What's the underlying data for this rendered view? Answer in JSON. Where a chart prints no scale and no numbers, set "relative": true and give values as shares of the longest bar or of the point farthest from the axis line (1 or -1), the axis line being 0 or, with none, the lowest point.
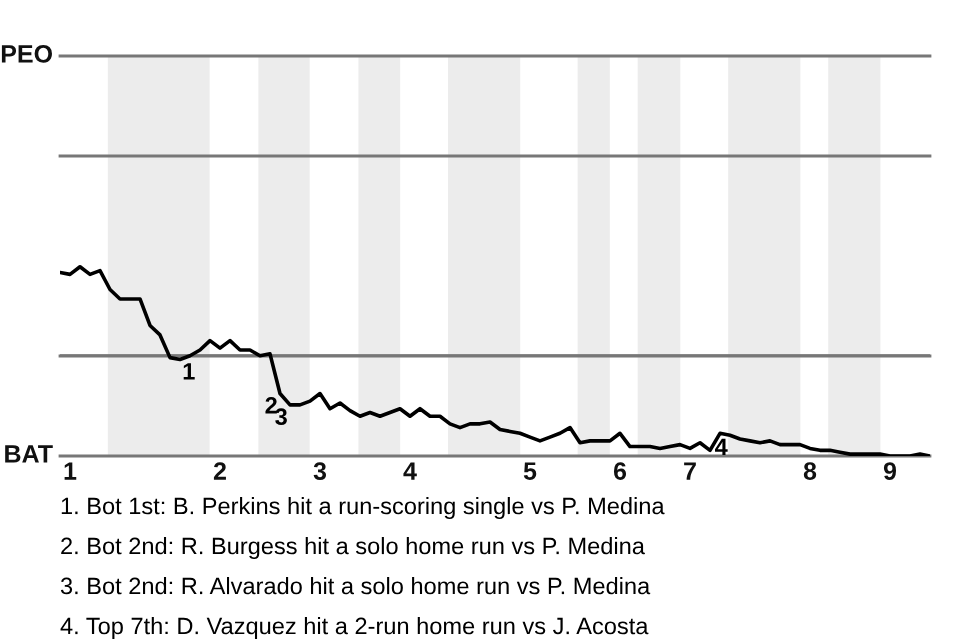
{
  "chart_data": {
    "type": "line",
    "relative": true,
    "categories": [
      null,
      "1",
      null,
      null,
      null,
      null,
      null,
      null,
      null,
      null,
      null,
      null,
      null,
      null,
      null,
      null,
      "2",
      null,
      null,
      null,
      null,
      null,
      null,
      null,
      null,
      null,
      "3",
      null,
      null,
      null,
      null,
      null,
      null,
      null,
      null,
      "4",
      null,
      null,
      null,
      null,
      null,
      null,
      null,
      null,
      null,
      null,
      null,
      "5",
      null,
      null,
      null,
      null,
      null,
      null,
      null,
      null,
      "6",
      null,
      null,
      null,
      null,
      null,
      null,
      "7",
      null,
      null,
      null,
      null,
      null,
      null,
      null,
      null,
      null,
      null,
      null,
      "8",
      null,
      null,
      null,
      null,
      null,
      null,
      null,
      "9",
      null,
      null,
      null,
      null
    ],
    "series": [
      {
        "color": "#000000",
        "values": [
          0.97,
          0.96,
          1,
          0.96,
          0.98,
          0.88,
          0.83,
          0.83,
          0.83,
          0.69,
          0.64,
          0.52,
          0.51,
          0.53,
          0.56,
          0.61,
          0.57,
          0.61,
          0.56,
          0.56,
          0.53,
          0.54,
          0.33,
          0.27,
          0.27,
          0.29,
          0.33,
          0.25,
          0.28,
          0.24,
          0.21,
          0.23,
          0.21,
          0.23,
          0.25,
          0.21,
          0.25,
          0.21,
          0.21,
          0.17,
          0.15,
          0.17,
          0.17,
          0.18,
          0.14,
          0.13,
          0.12,
          0.1,
          0.08,
          0.1,
          0.12,
          0.15,
          0.07,
          0.08,
          0.08,
          0.08,
          0.12,
          0.05,
          0.05,
          0.05,
          0.04,
          0.05,
          0.06,
          0.04,
          0.07,
          0.03,
          0.12,
          0.11,
          0.09,
          0.08,
          0.07,
          0.08,
          0.06,
          0.06,
          0.06,
          0.04,
          0.03,
          0.03,
          0.02,
          0.01,
          0.01,
          0.01,
          0.01,
          0,
          0,
          0,
          0.01,
          0
        ]
      }
    ],
    "ref_lines": [
      {
        "axis": "y",
        "value": 0.53
      }
    ],
    "annotations": [
      "PEO",
      "BAT",
      {
        "text": "1",
        "y": 0.51
      },
      {
        "text": "2",
        "y": 0.33
      },
      {
        "text": "3",
        "y": 0.27
      },
      {
        "text": "4",
        "y": 0.11
      },
      "1. Bot 1st: B. Perkins hit a run-scoring single vs P. Medina",
      "2. Bot 2nd: R. Burgess hit a solo home run vs P. Medina",
      "3. Bot 2nd: R. Alvarado hit a solo home run vs P. Medina",
      "4. Top 7th: D. Vazquez hit a 2-run home run vs J. Acosta"
    ]
  }
}
